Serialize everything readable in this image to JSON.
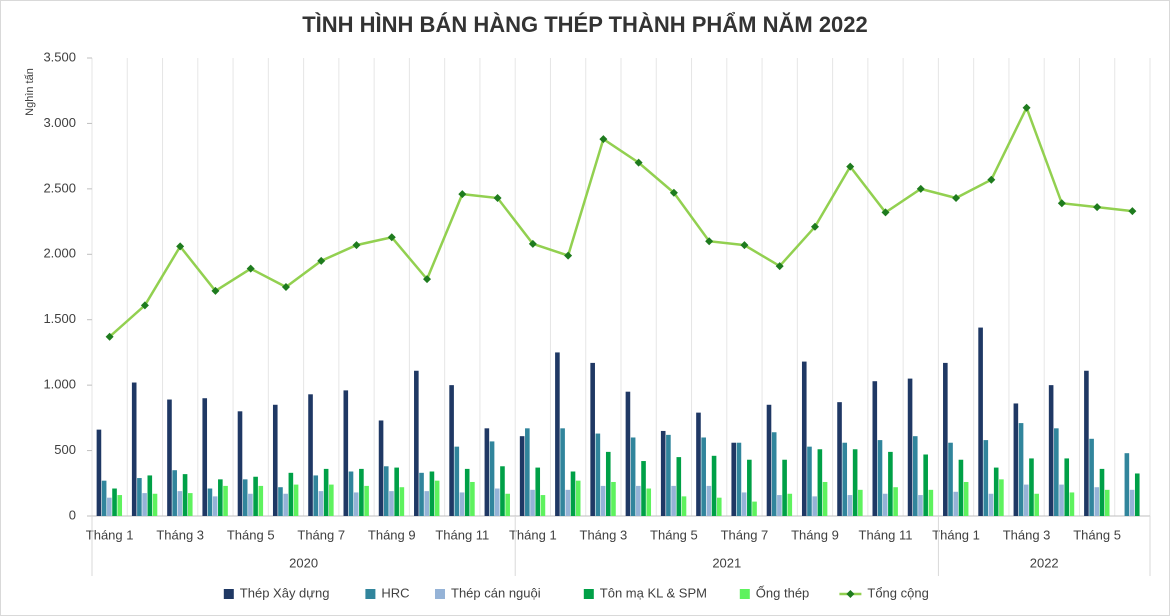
{
  "chart_data": {
    "type": "bar",
    "title": "TÌNH HÌNH BÁN HÀNG THÉP THÀNH PHẨM NĂM 2022",
    "y_label": "Nghìn tấn",
    "categories": [
      "Tháng 1",
      null,
      "Tháng 3",
      null,
      "Tháng 5",
      null,
      "Tháng 7",
      null,
      "Tháng 9",
      null,
      "Tháng 11",
      null,
      "Tháng 1",
      null,
      "Tháng 3",
      null,
      "Tháng 5",
      null,
      "Tháng 7",
      null,
      "Tháng 9",
      null,
      "Tháng 11",
      null,
      "Tháng 1",
      null,
      "Tháng 3",
      null,
      "Tháng 5",
      null
    ],
    "groups": [
      "2020",
      "2021",
      "2022"
    ],
    "ylim": [
      0,
      3500
    ],
    "yticks": [
      0,
      500,
      {
        "value": 1000,
        "label": "1.000"
      },
      {
        "value": 1500,
        "label": "1.500"
      },
      {
        "value": 2000,
        "label": "2.000"
      },
      {
        "value": 2500,
        "label": "2.500"
      },
      {
        "value": 3000,
        "label": "3.000"
      },
      {
        "value": 3500,
        "label": "3.500"
      }
    ],
    "series": [
      {
        "name": "Thép Xây dựng",
        "color": "#1f3864",
        "values": [
          660,
          1020,
          890,
          900,
          800,
          850,
          930,
          960,
          730,
          1110,
          1000,
          670,
          610,
          1250,
          1170,
          950,
          650,
          790,
          560,
          850,
          1180,
          870,
          1030,
          1050,
          1170,
          1440,
          860,
          1000,
          1110,
          null
        ]
      },
      {
        "name": "HRC",
        "color": "#31859c",
        "values": [
          270,
          290,
          350,
          210,
          280,
          220,
          310,
          340,
          380,
          330,
          530,
          570,
          670,
          670,
          630,
          600,
          620,
          600,
          560,
          640,
          530,
          560,
          580,
          610,
          560,
          580,
          710,
          670,
          590,
          480
        ]
      },
      {
        "name": "Thép cán nguội",
        "color": "#95b3d7",
        "values": [
          140,
          175,
          190,
          150,
          170,
          170,
          190,
          180,
          190,
          190,
          180,
          210,
          200,
          200,
          230,
          230,
          230,
          230,
          180,
          160,
          150,
          160,
          170,
          160,
          185,
          170,
          240,
          240,
          220,
          200
        ]
      },
      {
        "name": "Tôn mạ KL & SPM",
        "color": "#00a047",
        "values": [
          210,
          310,
          320,
          280,
          300,
          330,
          360,
          360,
          370,
          340,
          360,
          380,
          370,
          340,
          490,
          420,
          450,
          460,
          430,
          430,
          510,
          510,
          490,
          470,
          430,
          370,
          440,
          440,
          360,
          325
        ]
      },
      {
        "name": "Ống thép",
        "color": "#5ef25e",
        "values": [
          160,
          170,
          175,
          230,
          230,
          240,
          240,
          230,
          220,
          270,
          260,
          170,
          160,
          270,
          260,
          210,
          150,
          140,
          110,
          170,
          260,
          200,
          220,
          200,
          260,
          280,
          170,
          180,
          200,
          null
        ]
      },
      {
        "name": "Tổng cộng",
        "type": "line",
        "color": "#92d050",
        "marker_color": "#1e7b1e",
        "values": [
          1370,
          1610,
          2060,
          1720,
          1890,
          1750,
          1950,
          2070,
          2130,
          1810,
          2460,
          2430,
          2080,
          1990,
          2880,
          2700,
          2470,
          2100,
          2070,
          1910,
          2210,
          2670,
          2320,
          2500,
          2430,
          2570,
          3120,
          2390,
          2360,
          2330
        ]
      }
    ]
  }
}
